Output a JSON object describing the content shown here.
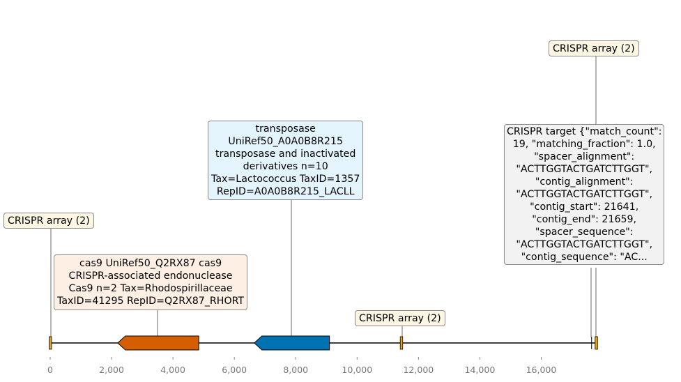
{
  "colors": {
    "backbone": "#000000",
    "crispr_array": "#e8a31a",
    "cas9": "#d55e00",
    "transposase": "#0072b2",
    "label_crispr_array_bg": "#fdf6e3",
    "label_cas9_bg": "#fdefe3",
    "label_transposase_bg": "#e4f4fc",
    "label_target_bg": "#f2f2f2"
  },
  "axis": {
    "min": 0,
    "max": 17800,
    "ticks": [
      0,
      2000,
      4000,
      6000,
      8000,
      10000,
      12000,
      14000,
      16000
    ],
    "tick_labels": [
      "0",
      "2,000",
      "4,000",
      "6,000",
      "8,000",
      "10,000",
      "12,000",
      "14,000",
      "16,000"
    ]
  },
  "features": [
    {
      "name": "crispr-array-1",
      "type": "crispr_array",
      "start": 0,
      "end": 60,
      "strand": 1
    },
    {
      "name": "cas9",
      "type": "cds",
      "start": 2200,
      "end": 4840,
      "strand": -1
    },
    {
      "name": "transposase",
      "type": "cds",
      "start": 6650,
      "end": 9100,
      "strand": -1
    },
    {
      "name": "crispr-array-2",
      "type": "crispr_array",
      "start": 11440,
      "end": 11520,
      "strand": 1
    },
    {
      "name": "crispr-target",
      "type": "target",
      "start": 17641,
      "end": 17659,
      "strand": 1
    },
    {
      "name": "crispr-array-3",
      "type": "crispr_array",
      "start": 17790,
      "end": 17860,
      "strand": 1
    }
  ],
  "labels": {
    "crispr_array_1": "CRISPR array (2)",
    "cas9": "cas9 UniRef50_Q2RX87 cas9\nCRISPR-associated endonuclease\nCas9 n=2 Tax=Rhodospirillaceae\nTaxID=41295 RepID=Q2RX87_RHORT",
    "transposase": "transposase\nUniRef50_A0A0B8R215\ntransposase and inactivated\nderivatives n=10\nTax=Lactococcus TaxID=1357\nRepID=A0A0B8R215_LACLL",
    "crispr_array_2": "CRISPR array (2)",
    "crispr_target": "CRISPR target {\"match_count\":\n19, \"matching_fraction\": 1.0,\n\"spacer_alignment\":\n\"ACTTGGTACTGATCTTGGT\",\n\"contig_alignment\":\n\"ACTTGGTACTGATCTTGGT\",\n\"contig_start\": 21641,\n\"contig_end\": 21659,\n\"spacer_sequence\":\n\"ACTTGGTACTGATCTTGGT\",\n\"contig_sequence\": \"AC...",
    "crispr_array_3": "CRISPR array (2)"
  }
}
